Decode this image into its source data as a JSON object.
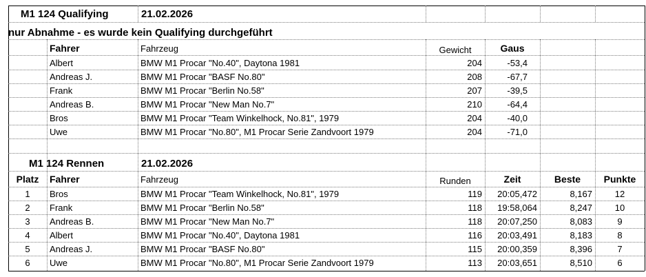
{
  "qualifying": {
    "title": "M1 124 Qualifying",
    "date": "21.02.2026",
    "note": "nur Abnahme - es wurde kein Qualifying durchgeführt",
    "headers": {
      "fahrer": "Fahrer",
      "fahrzeug": "Fahrzeug",
      "gewicht": "Gewicht",
      "gaus": "Gaus"
    },
    "rows": [
      {
        "fahrer": "Albert",
        "fahrzeug": "BMW M1 Procar \"No.40\", Daytona 1981",
        "gewicht": "204",
        "gaus": "-53,4"
      },
      {
        "fahrer": "Andreas J.",
        "fahrzeug": "BMW M1 Procar \"BASF No.80\"",
        "gewicht": "208",
        "gaus": "-67,7"
      },
      {
        "fahrer": "Frank",
        "fahrzeug": "BMW M1 Procar \"Berlin No.58\"",
        "gewicht": "207",
        "gaus": "-39,5"
      },
      {
        "fahrer": "Andreas B.",
        "fahrzeug": "BMW M1 Procar \"New Man No.7\"",
        "gewicht": "210",
        "gaus": "-64,4"
      },
      {
        "fahrer": "Bros",
        "fahrzeug": "BMW M1 Procar \"Team Winkelhock, No.81\", 1979",
        "gewicht": "204",
        "gaus": "-40,0"
      },
      {
        "fahrer": "Uwe",
        "fahrzeug": "BMW M1 Procar \"No.80\", M1 Procar Serie Zandvoort 1979",
        "gewicht": "204",
        "gaus": "-71,0"
      }
    ]
  },
  "race": {
    "title": "M1  124 Rennen",
    "date": "21.02.2026",
    "headers": {
      "platz": "Platz",
      "fahrer": "Fahrer",
      "fahrzeug": "Fahrzeug",
      "runden": "Runden",
      "zeit": "Zeit",
      "beste": "Beste",
      "punkte": "Punkte"
    },
    "rows": [
      {
        "platz": "1",
        "fahrer": "Bros",
        "fahrzeug": "BMW M1 Procar \"Team Winkelhock, No.81\", 1979",
        "runden": "119",
        "zeit": "20:05,472",
        "beste": "8,167",
        "punkte": "12"
      },
      {
        "platz": "2",
        "fahrer": "Frank",
        "fahrzeug": "BMW M1 Procar \"Berlin No.58\"",
        "runden": "118",
        "zeit": "19:58,064",
        "beste": "8,247",
        "punkte": "10"
      },
      {
        "platz": "3",
        "fahrer": "Andreas B.",
        "fahrzeug": "BMW M1 Procar \"New Man No.7\"",
        "runden": "118",
        "zeit": "20:07,250",
        "beste": "8,083",
        "punkte": "9"
      },
      {
        "platz": "4",
        "fahrer": "Albert",
        "fahrzeug": "BMW M1 Procar \"No.40\", Daytona 1981",
        "runden": "116",
        "zeit": "20:03,491",
        "beste": "8,183",
        "punkte": "8"
      },
      {
        "platz": "5",
        "fahrer": "Andreas J.",
        "fahrzeug": "BMW M1 Procar \"BASF No.80\"",
        "runden": "115",
        "zeit": "20:00,359",
        "beste": "8,396",
        "punkte": "7"
      },
      {
        "platz": "6",
        "fahrer": "Uwe",
        "fahrzeug": "BMW M1 Procar \"No.80\", M1 Procar Serie Zandvoort 1979",
        "runden": "113",
        "zeit": "20:03,651",
        "beste": "8,510",
        "punkte": "6"
      }
    ]
  }
}
